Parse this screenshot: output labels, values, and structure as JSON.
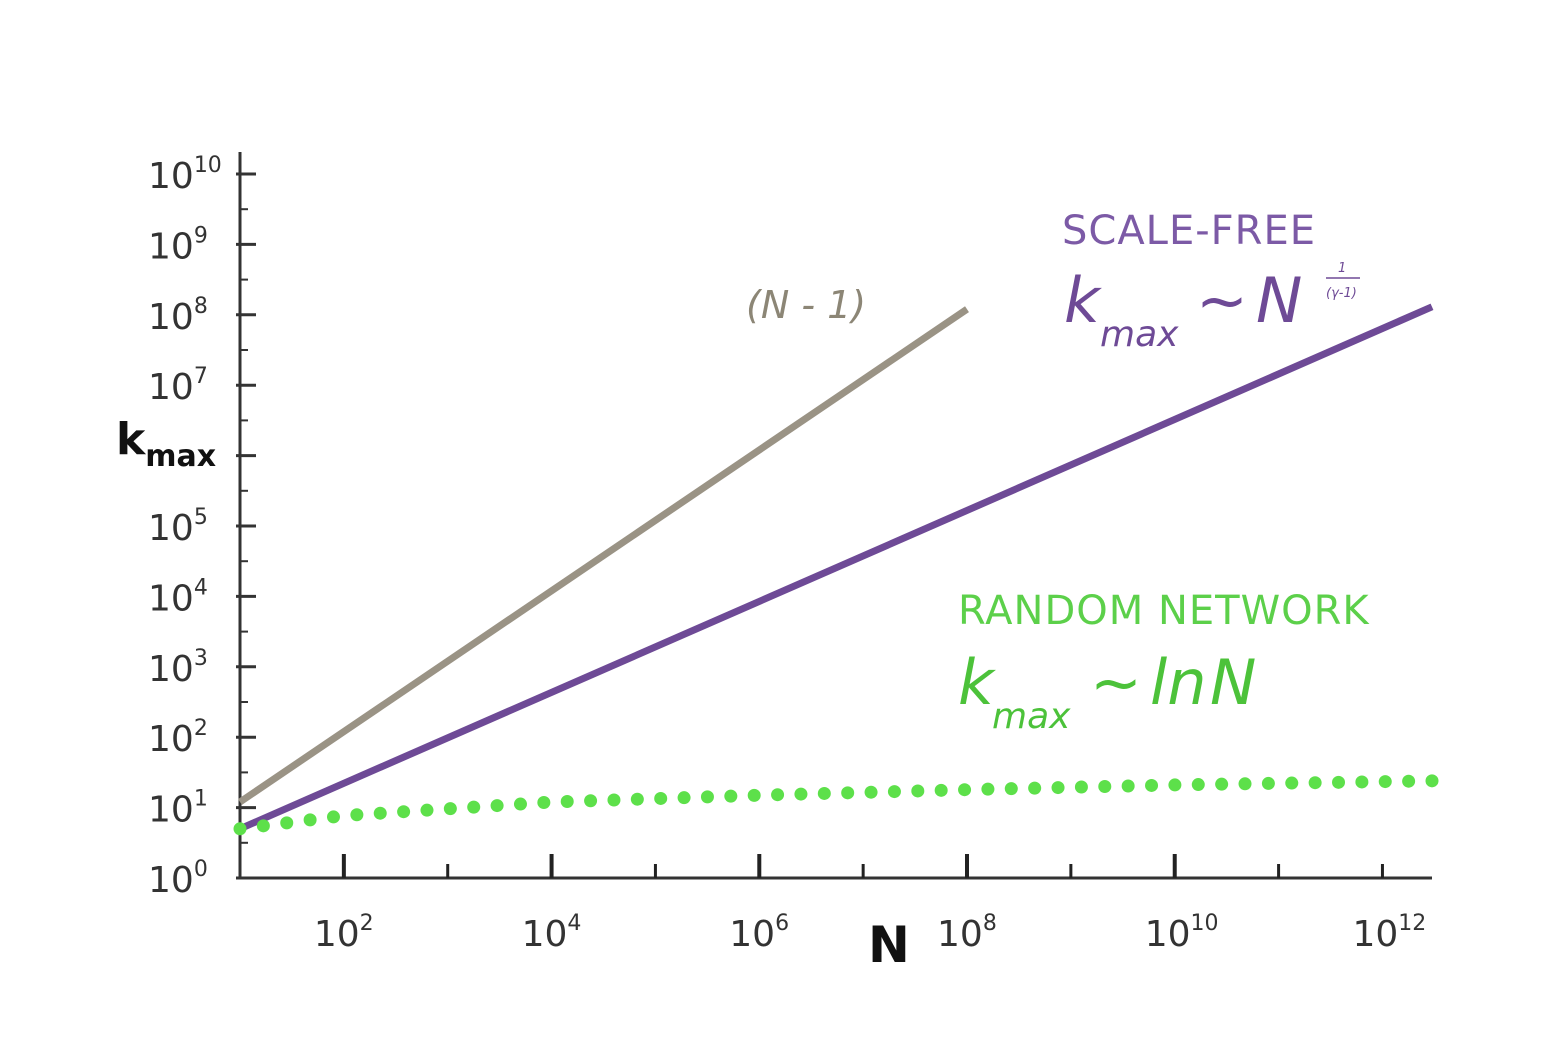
{
  "chart_data": {
    "type": "line",
    "xscale": "log",
    "yscale": "log",
    "xlabel": "N",
    "ylabel": "kmax",
    "xlim": [
      10,
      3000000000000.0
    ],
    "ylim": [
      1,
      10000000000.0
    ],
    "x_ticks": [
      {
        "base": "10",
        "exp": "2",
        "value": 100
      },
      {
        "base": "10",
        "exp": "4",
        "value": 10000
      },
      {
        "base": "10",
        "exp": "6",
        "value": 1000000
      },
      {
        "base": "10",
        "exp": "8",
        "value": 100000000
      },
      {
        "base": "10",
        "exp": "10",
        "value": 10000000000
      },
      {
        "base": "10",
        "exp": "12",
        "value": 1000000000000
      }
    ],
    "y_ticks": [
      {
        "base": "10",
        "exp": "0",
        "value": 1
      },
      {
        "base": "10",
        "exp": "1",
        "value": 10
      },
      {
        "base": "10",
        "exp": "2",
        "value": 100
      },
      {
        "base": "10",
        "exp": "3",
        "value": 1000
      },
      {
        "base": "10",
        "exp": "4",
        "value": 10000
      },
      {
        "base": "10",
        "exp": "5",
        "value": 100000
      },
      {
        "base": "10",
        "exp": "7",
        "value": 10000000
      },
      {
        "base": "10",
        "exp": "8",
        "value": 100000000
      },
      {
        "base": "10",
        "exp": "9",
        "value": 1000000000
      },
      {
        "base": "10",
        "exp": "10",
        "value": 10000000000
      }
    ],
    "grid": false,
    "series": [
      {
        "name": "(N - 1)",
        "color": "#9a9385",
        "style": "solid",
        "x": [
          10,
          100000000
        ],
        "y": [
          12,
          120000000
        ]
      },
      {
        "name": "SCALE-FREE",
        "color": "#6e4a96",
        "style": "solid",
        "x": [
          10,
          3000000000000
        ],
        "y": [
          5,
          130000000
        ]
      },
      {
        "name": "RANDOM NETWORK",
        "color": "#5de04a",
        "style": "dotted",
        "x": [
          10,
          100,
          10000,
          1000000,
          100000000,
          10000000000,
          3000000000000
        ],
        "y": [
          5,
          7.7,
          12,
          15,
          18,
          21,
          24
        ]
      }
    ],
    "annotations": {
      "n_minus_1": "(N - 1)",
      "scale_free_title": "SCALE-FREE",
      "random_title": "RANDOM NETWORK",
      "k": "k",
      "max": "max",
      "tilde": "~",
      "N": "N",
      "ln": "ln",
      "exp_num": "1",
      "exp_den": "(γ-1)"
    },
    "colors": {
      "axis": "#333333",
      "scale_free": "#6e4a96",
      "random": "#4cc23a",
      "n_minus_1": "#8c8676"
    }
  }
}
